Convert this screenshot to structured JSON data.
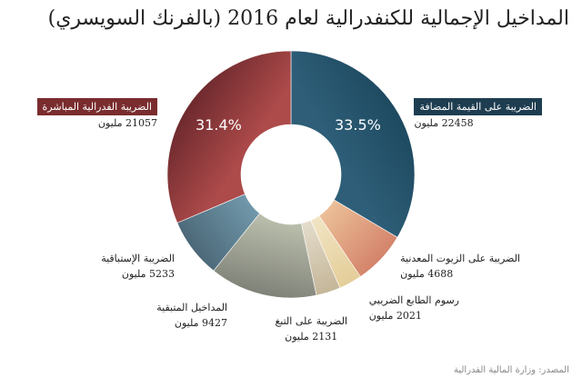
{
  "chart_data": {
    "type": "pie",
    "donut": true,
    "title": "المداخيل الإجمالية للكنفدرالية لعام 2016 (بالفرنك السويسري)",
    "unit": "مليون",
    "slices": [
      {
        "label": "الضريبة على القيمة المضافة",
        "value": 22458,
        "value_text": "22458 مليون",
        "percent_text": "33.5%",
        "color": "#1e4a60",
        "color2": "#2e5e78"
      },
      {
        "label": "الضريبة على الزيوت المعدنية",
        "value": 4688,
        "value_text": "4688 مليون",
        "color": "#d4836a",
        "color2": "#ebbf98"
      },
      {
        "label": "رسوم الطابع الضريبي",
        "value": 2021,
        "value_text": "2021 مليون",
        "color": "#e4cd98",
        "color2": "#f1e4c4"
      },
      {
        "label": "الضريبة على التبغ",
        "value": 2131,
        "value_text": "2131 مليون",
        "color": "#c4b698",
        "color2": "#e4dccc"
      },
      {
        "label": "المداخيل المتبقية",
        "value": 9427,
        "value_text": "9427 مليون",
        "color": "#7f8278",
        "color2": "#b8bcaa"
      },
      {
        "label": "الضريبة الإستباقية",
        "value": 5233,
        "value_text": "5233 مليون",
        "color": "#4c6878",
        "color2": "#7098aa"
      },
      {
        "label": "الضريبة الفدرالية المباشرة",
        "value": 21057,
        "value_text": "21057 مليون",
        "percent_text": "31.4%",
        "color": "#6e2a2e",
        "color2": "#ad4a4a"
      }
    ]
  },
  "source": "المصدر: وزارة المالية الفدرالية"
}
